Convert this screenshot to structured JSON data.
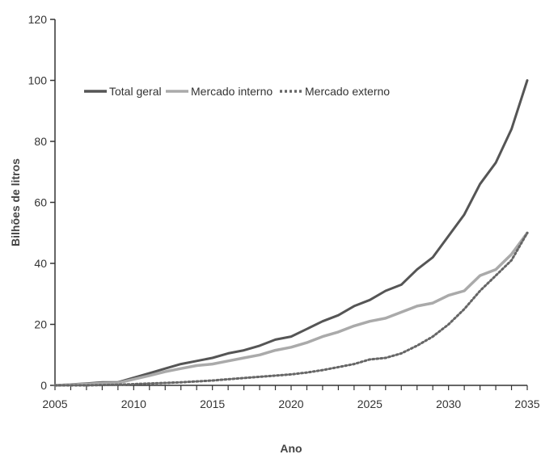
{
  "chart_data": {
    "type": "line",
    "title": "",
    "xlabel": "Ano",
    "ylabel": "Bilhões de litros",
    "xlim": [
      2005,
      2035
    ],
    "ylim": [
      0,
      120
    ],
    "xticks": [
      2005,
      2010,
      2015,
      2020,
      2025,
      2030,
      2035
    ],
    "yticks": [
      0,
      20,
      40,
      60,
      80,
      100,
      120
    ],
    "grid": false,
    "legend_position": "top-left",
    "x": [
      2005,
      2006,
      2007,
      2008,
      2009,
      2010,
      2011,
      2012,
      2013,
      2014,
      2015,
      2016,
      2017,
      2018,
      2019,
      2020,
      2021,
      2022,
      2023,
      2024,
      2025,
      2026,
      2027,
      2028,
      2029,
      2030,
      2031,
      2032,
      2033,
      2034,
      2035
    ],
    "series": [
      {
        "name": "Total geral",
        "color": "#555555",
        "dash": "solid",
        "values": [
          0,
          0.3,
          0.6,
          1,
          1,
          2.5,
          4,
          5.5,
          7,
          8,
          9,
          10.5,
          11.5,
          13,
          15,
          16,
          18.5,
          21,
          23,
          26,
          28,
          31,
          33,
          38,
          42,
          49,
          56,
          66,
          73,
          84,
          100
        ]
      },
      {
        "name": "Mercado interno",
        "color": "#aaaaaa",
        "dash": "solid",
        "values": [
          0,
          0.2,
          0.4,
          0.7,
          0.8,
          2,
          3.2,
          4.5,
          5.5,
          6.5,
          7,
          8,
          9,
          10,
          11.5,
          12.5,
          14,
          16,
          17.5,
          19.5,
          21,
          22,
          24,
          26,
          27,
          29.5,
          31,
          36,
          38,
          43,
          50
        ]
      },
      {
        "name": "Mercado externo",
        "color": "#666666",
        "dash": "dotted",
        "values": [
          0,
          0,
          0,
          0.1,
          0.2,
          0.4,
          0.6,
          0.8,
          1,
          1.3,
          1.6,
          2,
          2.4,
          2.8,
          3.2,
          3.6,
          4.2,
          5,
          6,
          7,
          8.5,
          9,
          10.5,
          13,
          16,
          20,
          25,
          31,
          36,
          41,
          50
        ]
      }
    ]
  }
}
